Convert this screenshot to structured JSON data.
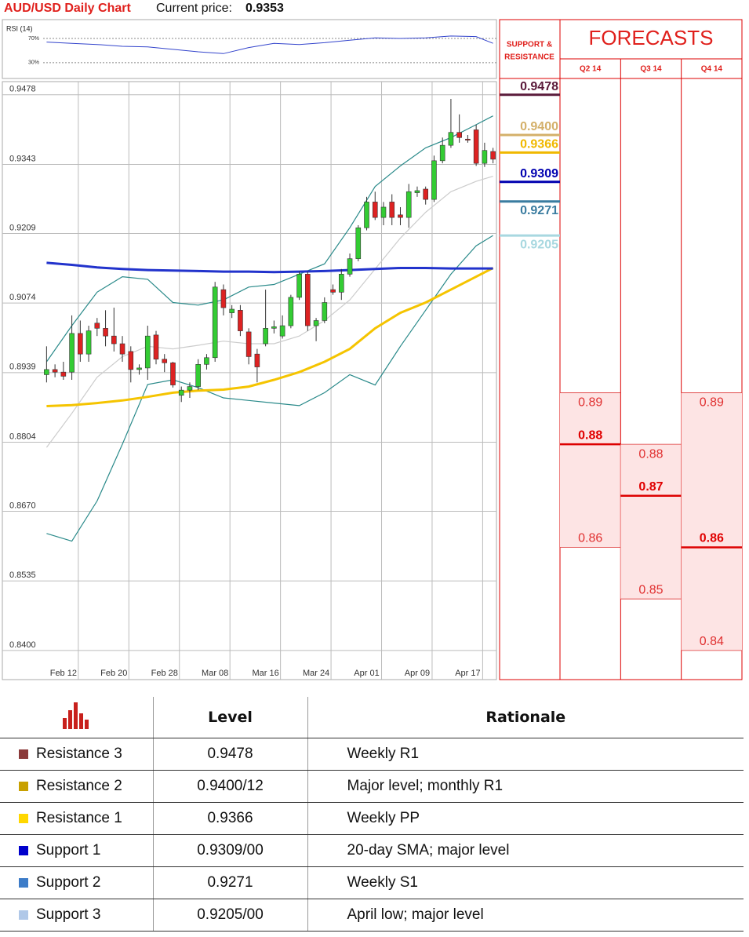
{
  "header": {
    "title": "AUD/USD Daily Chart",
    "current_price_label": "Current price:",
    "current_price": 0.9353
  },
  "chart_data": {
    "type": "candlestick",
    "categories": [
      null,
      null,
      "Feb 12",
      null,
      null,
      null,
      null,
      null,
      "Feb 20",
      null,
      null,
      null,
      null,
      null,
      "Feb 28",
      null,
      null,
      null,
      null,
      null,
      "Mar 08",
      null,
      null,
      null,
      null,
      null,
      "Mar 16",
      null,
      null,
      null,
      null,
      null,
      "Mar 24",
      null,
      null,
      null,
      null,
      null,
      "Apr 01",
      null,
      null,
      null,
      null,
      null,
      "Apr 09",
      null,
      null,
      null,
      null,
      null,
      "Apr 17",
      null,
      null,
      null
    ],
    "open": [
      0.8935,
      0.8945,
      0.894,
      0.894,
      0.9015,
      0.8975,
      0.9035,
      0.9025,
      0.901,
      0.8995,
      0.898,
      0.8945,
      0.8948,
      0.9012,
      0.8965,
      0.8958,
      0.8895,
      0.8905,
      0.8912,
      0.8955,
      0.8968,
      0.91,
      0.9055,
      0.906,
      0.9018,
      0.8975,
      0.8995,
      0.9025,
      0.901,
      0.903,
      0.9085,
      0.913,
      0.903,
      0.904,
      0.91,
      0.9095,
      0.913,
      0.916,
      0.922,
      0.927,
      0.924,
      0.927,
      0.9245,
      0.924,
      0.9288,
      0.9295,
      0.9275,
      0.935,
      0.938,
      0.9405,
      0.9392,
      0.941,
      0.9345,
      0.9368
    ],
    "high": [
      0.899,
      0.8955,
      0.896,
      0.905,
      0.904,
      0.903,
      0.9045,
      0.906,
      0.9065,
      0.901,
      0.899,
      0.8955,
      0.903,
      0.902,
      0.8975,
      0.896,
      0.8912,
      0.892,
      0.8965,
      0.8975,
      0.9115,
      0.911,
      0.907,
      0.907,
      0.9025,
      0.8985,
      0.91,
      0.904,
      0.905,
      0.909,
      0.9135,
      0.9135,
      0.9045,
      0.9085,
      0.911,
      0.914,
      0.917,
      0.9225,
      0.928,
      0.929,
      0.927,
      0.9285,
      0.926,
      0.9305,
      0.93,
      0.93,
      0.936,
      0.9395,
      0.947,
      0.944,
      0.94,
      0.942,
      0.9385,
      0.9375
    ],
    "low": [
      0.892,
      0.893,
      0.8925,
      0.8925,
      0.896,
      0.896,
      0.901,
      0.899,
      0.898,
      0.896,
      0.892,
      0.8935,
      0.8925,
      0.8955,
      0.894,
      0.891,
      0.8882,
      0.889,
      0.8905,
      0.8945,
      0.896,
      0.905,
      0.9045,
      0.901,
      0.8955,
      0.892,
      0.899,
      0.9015,
      0.9005,
      0.9025,
      0.908,
      0.902,
      0.9,
      0.9035,
      0.909,
      0.908,
      0.9125,
      0.9155,
      0.9215,
      0.9235,
      0.9225,
      0.9225,
      0.9225,
      0.922,
      0.928,
      0.9265,
      0.927,
      0.9345,
      0.9375,
      0.9385,
      0.9385,
      0.934,
      0.9338,
      0.9345
    ],
    "close": [
      0.8945,
      0.894,
      0.8932,
      0.9015,
      0.8975,
      0.902,
      0.9025,
      0.901,
      0.8995,
      0.8975,
      0.8945,
      0.8948,
      0.901,
      0.8965,
      0.8958,
      0.8915,
      0.8905,
      0.8912,
      0.8955,
      0.8968,
      0.9105,
      0.9065,
      0.9062,
      0.902,
      0.897,
      0.895,
      0.9025,
      0.9028,
      0.903,
      0.9085,
      0.913,
      0.903,
      0.904,
      0.9075,
      0.9095,
      0.913,
      0.916,
      0.922,
      0.927,
      0.924,
      0.926,
      0.924,
      0.924,
      0.929,
      0.9292,
      0.9275,
      0.935,
      0.938,
      0.9405,
      0.9395,
      0.939,
      0.9345,
      0.937,
      0.9353
    ],
    "up_color": "#33cc33",
    "down_color": "#dd2222",
    "ylim": [
      0.8345,
      0.9502
    ],
    "yticks": [
      0.9478,
      0.9343,
      0.9209,
      0.9074,
      0.8939,
      0.8804,
      {
        "value": 0.867,
        "label": "0.8670"
      },
      0.8535,
      {
        "value": 0.84,
        "label": "0.8400"
      }
    ],
    "grid": true,
    "overlay_x": [
      0,
      3,
      6,
      9,
      12,
      15,
      18,
      21,
      24,
      27,
      30,
      33,
      36,
      39,
      42,
      45,
      48,
      51,
      53
    ],
    "overlays": [
      {
        "color": "#2a8a8a",
        "values": [
          0.896,
          0.903,
          0.9095,
          0.9125,
          0.912,
          0.9075,
          0.907,
          0.908,
          0.9105,
          0.911,
          0.913,
          0.915,
          0.922,
          0.93,
          0.934,
          0.9375,
          0.9395,
          0.942,
          0.9437
        ]
      },
      {
        "color": "#cccccc",
        "values": [
          0.8794,
          0.886,
          0.893,
          0.897,
          0.899,
          0.8985,
          0.8992,
          0.9,
          0.8995,
          0.8995,
          0.901,
          0.904,
          0.908,
          0.914,
          0.92,
          0.925,
          0.929,
          0.931,
          0.932
        ]
      },
      {
        "color": "#2a8a8a",
        "values": [
          0.8627,
          0.8612,
          0.869,
          0.88,
          0.8916,
          0.8925,
          0.891,
          0.889,
          0.8885,
          0.888,
          0.8875,
          0.89,
          0.8935,
          0.8915,
          0.899,
          0.906,
          0.913,
          0.9185,
          0.9205
        ]
      },
      {
        "color": "#f5c400",
        "values": [
          0.8874,
          0.8876,
          0.888,
          0.8885,
          0.8892,
          0.89,
          0.8904,
          0.8906,
          0.8912,
          0.8925,
          0.894,
          0.896,
          0.8985,
          0.9025,
          0.9055,
          0.9075,
          0.91,
          0.9125,
          0.9142
        ]
      },
      {
        "color": "#2233cc",
        "values": [
          0.9152,
          0.9148,
          0.9143,
          0.914,
          0.9138,
          0.9137,
          0.9136,
          0.9135,
          0.9135,
          0.9134,
          0.9135,
          0.9136,
          0.9138,
          0.914,
          0.9142,
          0.9142,
          0.9141,
          0.9141,
          0.9141
        ]
      }
    ]
  },
  "rsi": {
    "title": "RSI (14)",
    "color": "#3344cc",
    "values": [
      64,
      62,
      60,
      57,
      56,
      52,
      48,
      45,
      55,
      62,
      60,
      63,
      67,
      71,
      70,
      71,
      74,
      73,
      62
    ],
    "ylim": [
      4,
      101
    ],
    "yticks": [
      {
        "value": 70,
        "label": "70%"
      },
      {
        "value": 30,
        "label": "30%"
      }
    ]
  },
  "levels": {
    "title_lines": [
      "SUPPORT &",
      "RESISTANCE"
    ],
    "items": [
      {
        "value": 0.9478,
        "color": "#5a1a3a"
      },
      {
        "value": 0.94,
        "label": "0.9400",
        "color": "#d4b06a"
      },
      {
        "value": 0.9366,
        "color": "#f0b800"
      },
      {
        "value": 0.9309,
        "color": "#0000b0"
      },
      {
        "value": 0.9271,
        "color": "#3a7ca0"
      },
      {
        "value": 0.9205,
        "color": "#a8d8e0"
      }
    ]
  },
  "forecasts": {
    "title": "FORECASTS",
    "columns": [
      {
        "quarter": "Q2 14",
        "high": 0.89,
        "base": 0.88,
        "low": 0.86
      },
      {
        "quarter": "Q3 14",
        "high": 0.88,
        "base": 0.87,
        "low": 0.85
      },
      {
        "quarter": "Q4 14",
        "high": 0.89,
        "base": 0.86,
        "low": 0.84
      }
    ]
  },
  "table": {
    "columns": [
      "Level",
      "Rationale"
    ],
    "rows": [
      {
        "name": "Resistance 3",
        "color": "#8b3a3a",
        "level": "0.9478",
        "rationale": "Weekly R1"
      },
      {
        "name": "Resistance 2",
        "color": "#c8a000",
        "level": "0.9400/12",
        "rationale": "Major level; monthly R1"
      },
      {
        "name": "Resistance 1",
        "color": "#ffd700",
        "level": "0.9366",
        "rationale": "Weekly PP"
      },
      {
        "name": "Support 1",
        "color": "#0000cc",
        "level": "0.9309/00",
        "rationale": "20-day SMA; major level"
      },
      {
        "name": "Support 2",
        "color": "#3d7cc8",
        "level": "0.9271",
        "rationale": "Weekly S1"
      },
      {
        "name": "Support 3",
        "color": "#b0c8e8",
        "level": "0.9205/00",
        "rationale": "April low; major level"
      }
    ]
  }
}
